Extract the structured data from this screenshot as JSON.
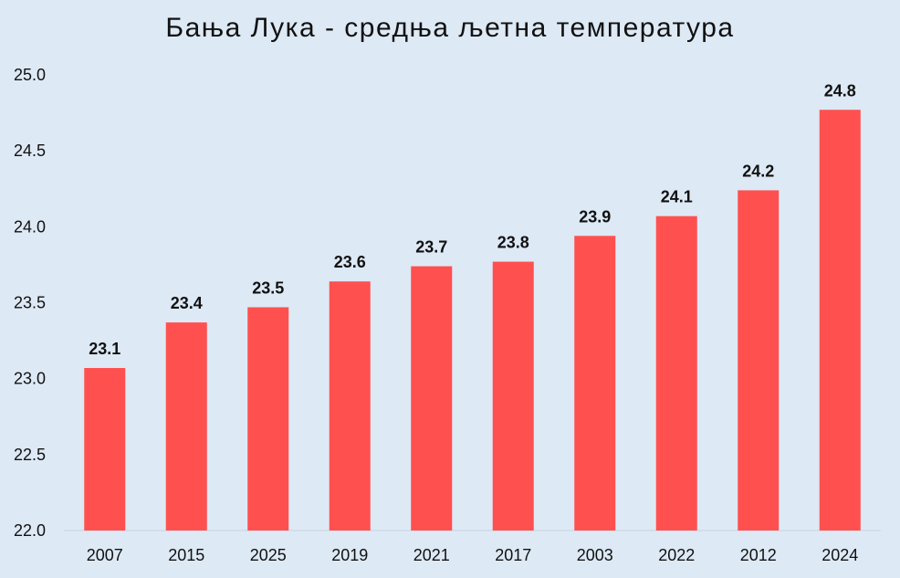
{
  "chart_data": {
    "type": "bar",
    "title": "Бања Лука - средња љетна температура",
    "xlabel": "",
    "ylabel": "",
    "categories": [
      "2007",
      "2015",
      "2025",
      "2019",
      "2021",
      "2017",
      "2003",
      "2022",
      "2012",
      "2024"
    ],
    "values": [
      23.07,
      23.37,
      23.47,
      23.64,
      23.74,
      23.77,
      23.94,
      24.07,
      24.24,
      24.77
    ],
    "data_labels": [
      "23.1",
      "23.4",
      "23.5",
      "23.6",
      "23.7",
      "23.8",
      "23.9",
      "24.1",
      "24.2",
      "24.8"
    ],
    "ylim": [
      22.0,
      25.0
    ],
    "yticks": [
      "22.0",
      "22.5",
      "23.0",
      "23.5",
      "24.0",
      "24.5",
      "25.0"
    ],
    "grid": false,
    "legend": "none",
    "bar_color": "#ff5050",
    "background_color": "#dde9f5"
  }
}
